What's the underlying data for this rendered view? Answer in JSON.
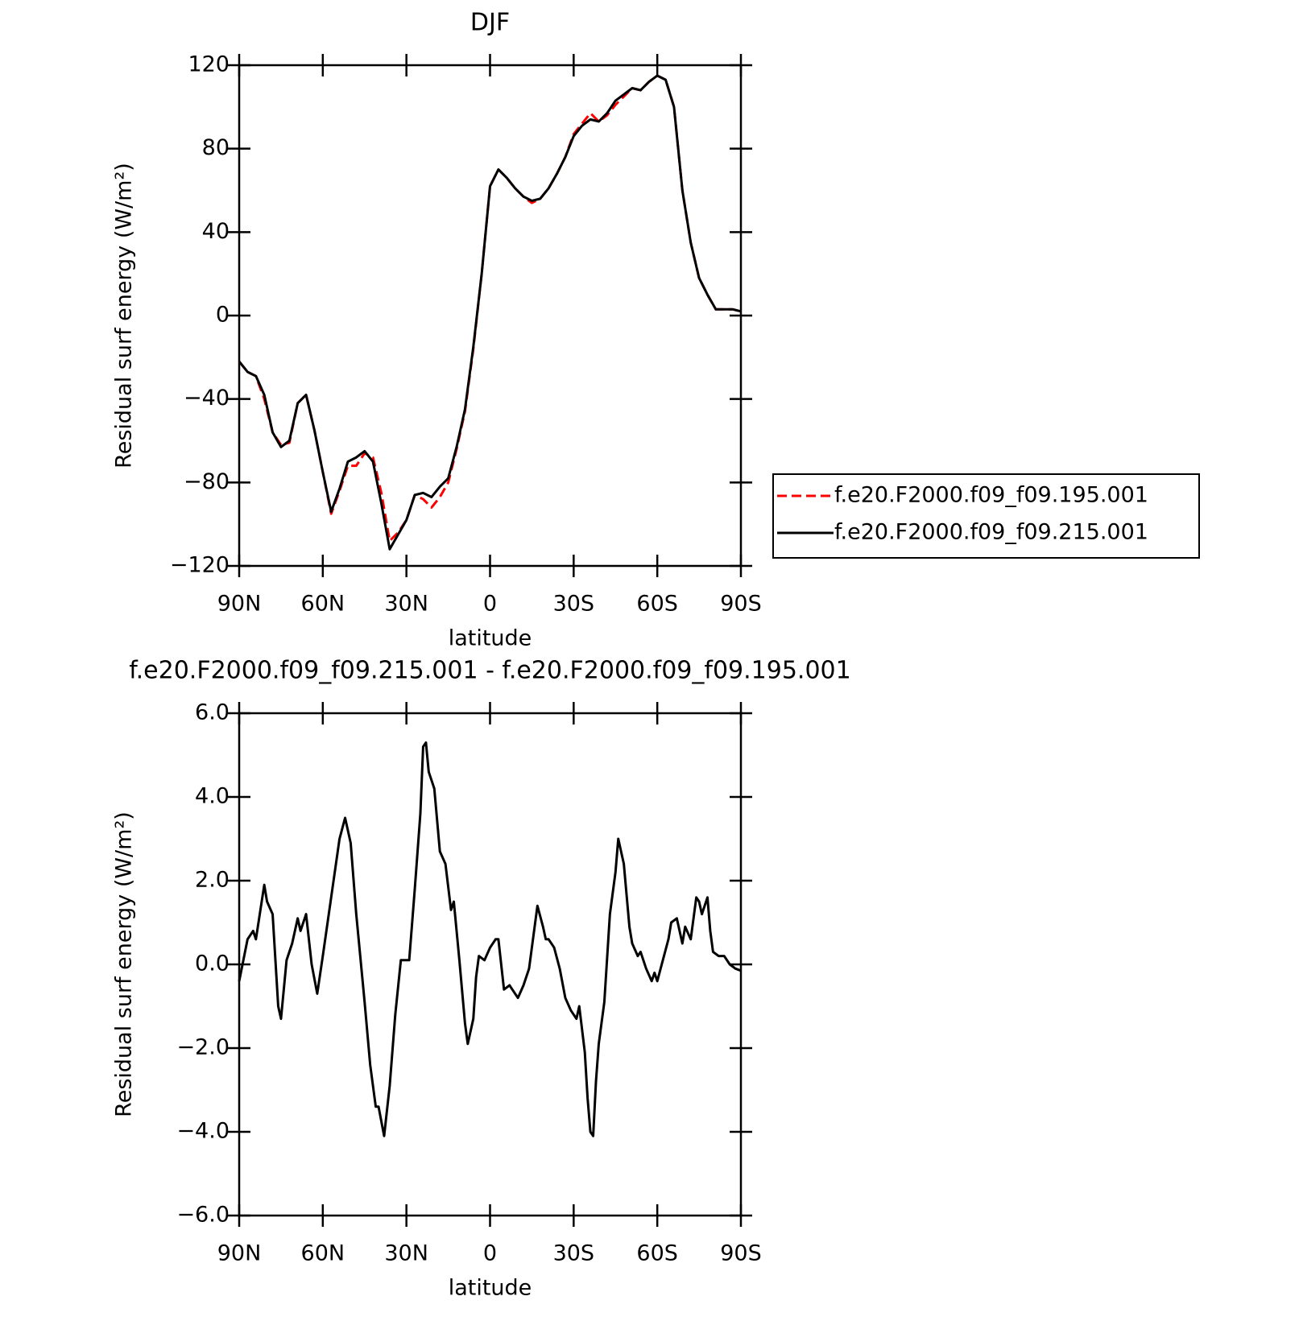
{
  "chart_data": [
    {
      "type": "line",
      "title": "DJF",
      "xlabel": "latitude",
      "ylabel": "Residual surf energy (W/m²)",
      "x": [
        90,
        87,
        84,
        81,
        78,
        75,
        72,
        69,
        66,
        63,
        60,
        57,
        54,
        51,
        48,
        45,
        42,
        39,
        36,
        33,
        30,
        27,
        24,
        21,
        18,
        15,
        12,
        9,
        6,
        3,
        0,
        -3,
        -6,
        -9,
        -12,
        -15,
        -18,
        -21,
        -24,
        -27,
        -30,
        -33,
        -36,
        -39,
        -42,
        -45,
        -48,
        -51,
        -54,
        -57,
        -60,
        -63,
        -66,
        -69,
        -72,
        -75,
        -78,
        -81,
        -84,
        -87,
        -90
      ],
      "series": [
        {
          "name": "f.e20.F2000.f09_f09.195.001",
          "color": "#ff0000",
          "dashed": true,
          "values": [
            -22,
            -27,
            -29,
            -40,
            -56,
            -62,
            -61,
            -42,
            -38,
            -55,
            -75,
            -95,
            -84,
            -72,
            -72,
            -66,
            -68,
            -85,
            -108,
            -104,
            -98,
            -86,
            -88,
            -92,
            -87,
            -80,
            -64,
            -46,
            -16,
            20,
            62,
            70,
            66,
            61,
            57,
            54,
            56,
            61,
            68,
            76,
            87,
            92,
            97,
            93,
            96,
            101,
            105,
            109,
            108,
            112,
            115,
            113,
            100,
            60,
            35,
            18,
            10,
            3,
            3,
            3,
            2
          ]
        },
        {
          "name": "f.e20.F2000.f09_f09.215.001",
          "color": "#000000",
          "dashed": false,
          "values": [
            -22,
            -27,
            -29,
            -38,
            -56,
            -63,
            -60,
            -42,
            -38,
            -55,
            -75,
            -94,
            -83,
            -70,
            -68,
            -65,
            -70,
            -90,
            -112,
            -105,
            -98,
            -86,
            -85,
            -87,
            -82,
            -78,
            -63,
            -45,
            -15,
            20,
            62,
            70,
            66,
            61,
            57,
            55,
            56,
            61,
            68,
            76,
            86,
            91,
            94,
            93,
            97,
            103,
            106,
            109,
            108,
            112,
            115,
            113,
            100,
            60,
            35,
            18,
            10,
            3,
            3,
            3,
            2
          ]
        }
      ],
      "xlim": [
        90,
        -90
      ],
      "xticks": [
        {
          "value": 90,
          "label": "90N"
        },
        {
          "value": 60,
          "label": "60N"
        },
        {
          "value": 30,
          "label": "30N"
        },
        0,
        {
          "value": -30,
          "label": "30S"
        },
        {
          "value": -60,
          "label": "60S"
        },
        {
          "value": -90,
          "label": "90S"
        }
      ],
      "ylim": [
        -120,
        120
      ],
      "yticks": [
        {
          "value": -120,
          "label": "−120"
        },
        {
          "value": -80,
          "label": "−80"
        },
        {
          "value": -40,
          "label": "−40"
        },
        0,
        40,
        80,
        120
      ],
      "legend": "outside-right"
    },
    {
      "type": "line",
      "title": "f.e20.F2000.f09_f09.215.001 - f.e20.F2000.f09_f09.195.001",
      "xlabel": "latitude",
      "ylabel": "Residual surf energy (W/m²)",
      "x": [
        90,
        87,
        85,
        84,
        81,
        80,
        78,
        76,
        75,
        73,
        71,
        69,
        68,
        66,
        64,
        62,
        60,
        57,
        54,
        52,
        50,
        48,
        45,
        43,
        41,
        40,
        38,
        36,
        34,
        32,
        29,
        27,
        25,
        24,
        23,
        22,
        20,
        18,
        16,
        14,
        13,
        11,
        9,
        8,
        6,
        5,
        4,
        2,
        0,
        -2,
        -3,
        -5,
        -7,
        -9,
        -10,
        -12,
        -14,
        -16,
        -17,
        -19,
        -20,
        -21,
        -23,
        -25,
        -27,
        -29,
        -31,
        -32,
        -34,
        -35,
        -36,
        -37,
        -38,
        -39,
        -41,
        -43,
        -45,
        -46,
        -48,
        -50,
        -51,
        -53,
        -54,
        -56,
        -58,
        -59,
        -60,
        -62,
        -64,
        -65,
        -67,
        -69,
        -70,
        -72,
        -74,
        -75,
        -76,
        -78,
        -79,
        -80,
        -82,
        -84,
        -86,
        -88,
        -90
      ],
      "series": [
        {
          "color": "#000000",
          "dashed": false,
          "values": [
            -0.4,
            0.6,
            0.8,
            0.6,
            1.9,
            1.5,
            1.2,
            -1.0,
            -1.3,
            0.1,
            0.5,
            1.1,
            0.8,
            1.2,
            0.0,
            -0.7,
            0.2,
            1.6,
            3.0,
            3.5,
            2.9,
            1.2,
            -0.9,
            -2.4,
            -3.4,
            -3.4,
            -4.1,
            -2.9,
            -1.2,
            0.1,
            0.1,
            1.8,
            3.6,
            5.2,
            5.3,
            4.6,
            4.2,
            2.7,
            2.4,
            1.3,
            1.5,
            0.1,
            -1.4,
            -1.9,
            -1.3,
            -0.3,
            0.2,
            0.1,
            0.4,
            0.6,
            0.6,
            -0.6,
            -0.5,
            -0.7,
            -0.8,
            -0.5,
            -0.1,
            0.9,
            1.4,
            0.9,
            0.6,
            0.6,
            0.4,
            -0.1,
            -0.8,
            -1.1,
            -1.3,
            -1.0,
            -2.1,
            -3.2,
            -4.0,
            -4.1,
            -2.8,
            -1.9,
            -0.9,
            1.2,
            2.2,
            3.0,
            2.4,
            0.9,
            0.5,
            0.2,
            0.3,
            -0.1,
            -0.4,
            -0.2,
            -0.4,
            0.1,
            0.6,
            1.0,
            1.1,
            0.5,
            0.9,
            0.6,
            1.6,
            1.5,
            1.2,
            1.6,
            0.8,
            0.3,
            0.2,
            0.2,
            0.0,
            -0.1,
            -0.15
          ]
        }
      ],
      "xlim": [
        90,
        -90
      ],
      "xticks": [
        {
          "value": 90,
          "label": "90N"
        },
        {
          "value": 60,
          "label": "60N"
        },
        {
          "value": 30,
          "label": "30N"
        },
        0,
        {
          "value": -30,
          "label": "30S"
        },
        {
          "value": -60,
          "label": "60S"
        },
        {
          "value": -90,
          "label": "90S"
        }
      ],
      "ylim": [
        -6,
        6
      ],
      "yticks": [
        {
          "value": -6,
          "label": "−6.0"
        },
        {
          "value": -4,
          "label": "−4.0"
        },
        {
          "value": -2,
          "label": "−2.0"
        },
        {
          "value": 0,
          "label": "0.0"
        },
        {
          "value": 2,
          "label": "2.0"
        },
        {
          "value": 4,
          "label": "4.0"
        },
        {
          "value": 6,
          "label": "6.0"
        }
      ]
    }
  ]
}
